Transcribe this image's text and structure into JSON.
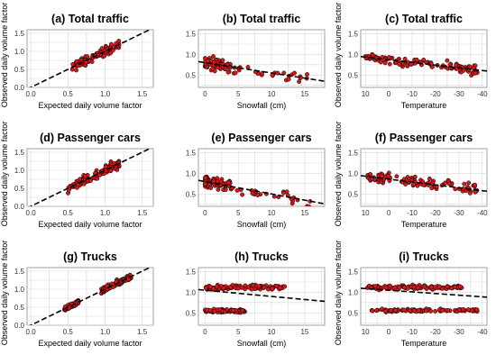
{
  "figure": {
    "background": "#ffffff"
  },
  "chart_data": [
    {
      "id": "a",
      "type": "scatter",
      "title": "(a) Total traffic",
      "xlabel": "Expected daily volume factor",
      "ylabel": "Observed daily volume factor",
      "xlim": [
        -0.05,
        1.65
      ],
      "ylim": [
        0,
        1.6
      ],
      "xticks": [
        0,
        0.5,
        1,
        1.5
      ],
      "xtick_labels": [
        "0.0",
        "0.5",
        "1.0",
        "1.5"
      ],
      "yticks": [
        0,
        0.5,
        1,
        1.5
      ],
      "ytick_labels": [
        "0.0",
        "0.5",
        "1.0",
        "1.5"
      ],
      "trendline": {
        "style": "dashed",
        "slope": 1,
        "intercept": 0
      },
      "point_clusters": [
        {
          "x_range": [
            0.55,
            1.2
          ],
          "y_spread": 0.18,
          "relation": "y≈x"
        }
      ],
      "marker_color": "#d7191c"
    },
    {
      "id": "b",
      "type": "scatter",
      "title": "(b) Total traffic",
      "xlabel": "Snowfall (cm)",
      "ylabel": "",
      "xlim": [
        -1,
        18
      ],
      "ylim": [
        0.2,
        1.6
      ],
      "xticks": [
        0,
        5,
        10,
        15
      ],
      "xtick_labels": [
        "0",
        "5",
        "10",
        "15"
      ],
      "yticks": [
        0.5,
        1,
        1.5
      ],
      "ytick_labels": [
        "0.5",
        "1.0",
        "1.5"
      ],
      "trendline": {
        "style": "dashed",
        "slope": -0.025,
        "intercept": 0.8
      },
      "point_clusters": [
        {
          "x_range": [
            0,
            16
          ],
          "y_spread": 0.2,
          "dense_below_x": 4
        }
      ],
      "marker_color": "#d7191c"
    },
    {
      "id": "c",
      "type": "scatter",
      "title": "(c) Total traffic",
      "xlabel": "Temperature",
      "ylabel": "Observed daily volume factor",
      "xlim": [
        12,
        -42
      ],
      "ylim": [
        0.2,
        1.6
      ],
      "xticks": [
        10,
        0,
        -10,
        -20,
        -30,
        -40
      ],
      "xtick_labels": [
        "10",
        "0",
        "-10",
        "-20",
        "-30",
        "-40"
      ],
      "yticks": [
        0.5,
        1,
        1.5
      ],
      "ytick_labels": [
        "0.5",
        "1.0",
        "1.5"
      ],
      "trendline": {
        "style": "dashed",
        "slope": 0.0065,
        "intercept": 0.87
      },
      "point_clusters": [
        {
          "x_range": [
            -38,
            10
          ],
          "y_spread": 0.18
        }
      ],
      "marker_color": "#d7191c"
    },
    {
      "id": "d",
      "type": "scatter",
      "title": "(d) Passenger cars",
      "xlabel": "Expected daily volume factor",
      "ylabel": "Observed daily volume factor",
      "xlim": [
        -0.05,
        1.65
      ],
      "ylim": [
        0,
        1.6
      ],
      "xticks": [
        0,
        0.5,
        1,
        1.5
      ],
      "xtick_labels": [
        "0.0",
        "0.5",
        "1.0",
        "1.5"
      ],
      "yticks": [
        0,
        0.5,
        1,
        1.5
      ],
      "ytick_labels": [
        "0.0",
        "0.5",
        "1.0",
        "1.5"
      ],
      "trendline": {
        "style": "dashed",
        "slope": 1,
        "intercept": 0
      },
      "point_clusters": [
        {
          "x_range": [
            0.5,
            1.2
          ],
          "y_spread": 0.2,
          "relation": "y≈x"
        }
      ],
      "marker_color": "#d7191c"
    },
    {
      "id": "e",
      "type": "scatter",
      "title": "(e) Passenger cars",
      "xlabel": "Snowfall (cm)",
      "ylabel": "",
      "xlim": [
        -1,
        18
      ],
      "ylim": [
        0.2,
        1.6
      ],
      "xticks": [
        0,
        5,
        10,
        15
      ],
      "xtick_labels": [
        "0",
        "5",
        "10",
        "15"
      ],
      "yticks": [
        0.5,
        1,
        1.5
      ],
      "ytick_labels": [
        "0.5",
        "1.0",
        "1.5"
      ],
      "trendline": {
        "style": "dashed",
        "slope": -0.03,
        "intercept": 0.8
      },
      "point_clusters": [
        {
          "x_range": [
            0,
            16
          ],
          "y_spread": 0.22,
          "dense_below_x": 4
        }
      ],
      "marker_color": "#d7191c"
    },
    {
      "id": "f",
      "type": "scatter",
      "title": "(f) Passenger cars",
      "xlabel": "Temperature",
      "ylabel": "Observed daily volume factor",
      "xlim": [
        12,
        -42
      ],
      "ylim": [
        0.2,
        1.6
      ],
      "xticks": [
        10,
        0,
        -10,
        -20,
        -30,
        -40
      ],
      "xtick_labels": [
        "10",
        "0",
        "-10",
        "-20",
        "-30",
        "-40"
      ],
      "yticks": [
        0.5,
        1,
        1.5
      ],
      "ytick_labels": [
        "0.5",
        "1.0",
        "1.5"
      ],
      "trendline": {
        "style": "dashed",
        "slope": 0.007,
        "intercept": 0.86
      },
      "point_clusters": [
        {
          "x_range": [
            -38,
            10
          ],
          "y_spread": 0.2
        }
      ],
      "marker_color": "#d7191c"
    },
    {
      "id": "g",
      "type": "scatter",
      "title": "(g) Trucks",
      "xlabel": "Expected daily volume factor",
      "ylabel": "Observed daily volume factor",
      "xlim": [
        -0.05,
        1.65
      ],
      "ylim": [
        0,
        1.6
      ],
      "xticks": [
        0,
        0.5,
        1,
        1.5
      ],
      "xtick_labels": [
        "0.0",
        "0.5",
        "1.0",
        "1.5"
      ],
      "yticks": [
        0,
        0.5,
        1,
        1.5
      ],
      "ytick_labels": [
        "0.0",
        "0.5",
        "1.0",
        "1.5"
      ],
      "trendline": {
        "style": "dashed",
        "slope": 1,
        "intercept": 0
      },
      "point_clusters": [
        {
          "x_range": [
            0.45,
            0.65
          ],
          "y_spread": 0.08,
          "relation": "y≈x"
        },
        {
          "x_range": [
            0.95,
            1.35
          ],
          "y_spread": 0.12,
          "relation": "y≈x"
        }
      ],
      "marker_color": "#d7191c"
    },
    {
      "id": "h",
      "type": "scatter",
      "title": "(h) Trucks",
      "xlabel": "Snowfall (cm)",
      "ylabel": "",
      "xlim": [
        -1,
        18
      ],
      "ylim": [
        0.2,
        1.6
      ],
      "xticks": [
        0,
        5,
        10,
        15
      ],
      "xtick_labels": [
        "0",
        "5",
        "10",
        "15"
      ],
      "yticks": [
        0.5,
        1,
        1.5
      ],
      "ytick_labels": [
        "0.5",
        "1.0",
        "1.5"
      ],
      "trendline": {
        "style": "dashed",
        "slope": -0.015,
        "intercept": 1.05
      },
      "point_clusters": [
        {
          "x_range": [
            0,
            12
          ],
          "y_center": 1.12,
          "y_spread": 0.08
        },
        {
          "x_range": [
            0,
            6
          ],
          "y_center": 0.55,
          "y_spread": 0.06
        }
      ],
      "marker_color": "#d7191c"
    },
    {
      "id": "i",
      "type": "scatter",
      "title": "(i) Trucks",
      "xlabel": "Temperature",
      "ylabel": "Observed daily volume factor",
      "xlim": [
        12,
        -42
      ],
      "ylim": [
        0.2,
        1.6
      ],
      "xticks": [
        10,
        0,
        -10,
        -20,
        -30,
        -40
      ],
      "xtick_labels": [
        "10",
        "0",
        "-10",
        "-20",
        "-30",
        "-40"
      ],
      "yticks": [
        0.5,
        1,
        1.5
      ],
      "ytick_labels": [
        "0.5",
        "1.0",
        "1.5"
      ],
      "trendline": {
        "style": "dashed",
        "slope": 0.004,
        "intercept": 1.05
      },
      "point_clusters": [
        {
          "x_range": [
            -32,
            10
          ],
          "y_center": 1.12,
          "y_spread": 0.08
        },
        {
          "x_range": [
            -38,
            8
          ],
          "y_center": 0.56,
          "y_spread": 0.05
        }
      ],
      "marker_color": "#d7191c"
    }
  ]
}
